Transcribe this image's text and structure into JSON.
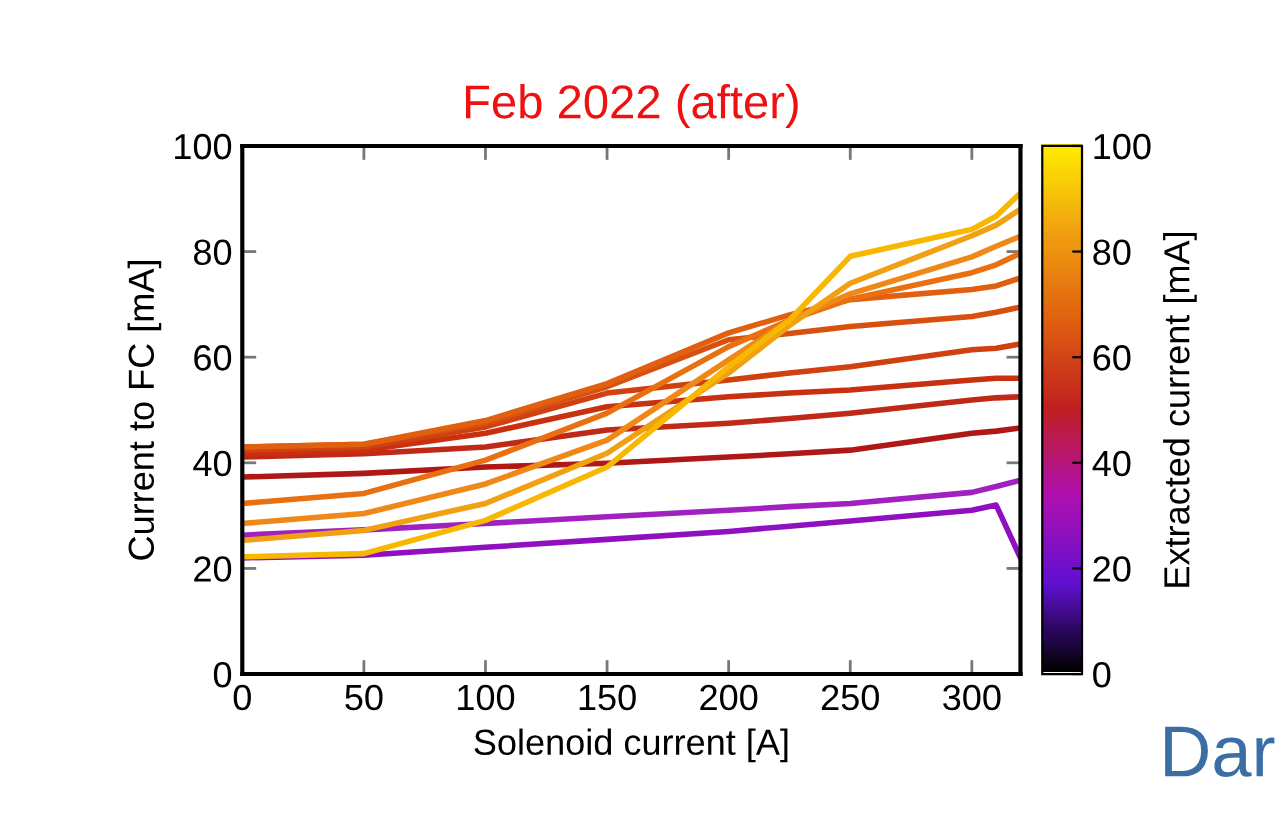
{
  "chart_data": {
    "type": "line",
    "title": "Feb 2022 (after)",
    "xlabel": "Solenoid current [A]",
    "ylabel": "Current to FC [mA]",
    "clabel": "Extracted current [mA]",
    "x": [
      0,
      50,
      100,
      150,
      200,
      225,
      250,
      300,
      310,
      320
    ],
    "series": [
      {
        "color": "#9010c0",
        "values": [
          22,
          22.5,
          24,
          25.5,
          27,
          28,
          29,
          31,
          32,
          22
        ]
      },
      {
        "color": "#a020c0",
        "values": [
          26.3,
          27.3,
          28.5,
          29.8,
          31,
          31.7,
          32.3,
          34.4,
          35.5,
          36.7
        ]
      },
      {
        "color": "#b01818",
        "values": [
          37.3,
          38,
          39.2,
          39.9,
          41.1,
          41.7,
          42.4,
          45.6,
          46,
          46.6
        ]
      },
      {
        "color": "#c02818",
        "values": [
          41.1,
          41.7,
          43,
          46.2,
          47.5,
          48.4,
          49.4,
          51.9,
          52.3,
          52.5
        ]
      },
      {
        "color": "#c83010",
        "values": [
          41.8,
          42.4,
          45.6,
          50.6,
          52.5,
          53.2,
          53.8,
          55.7,
          56,
          56
        ]
      },
      {
        "color": "#d04010",
        "values": [
          42.4,
          43,
          46.8,
          53.2,
          55.7,
          57,
          58.2,
          61.4,
          61.7,
          62.5
        ]
      },
      {
        "color": "#d85010",
        "values": [
          43,
          43.5,
          47.5,
          54.4,
          63.3,
          64.5,
          65.8,
          67.7,
          68.5,
          69.5
        ]
      },
      {
        "color": "#e06010",
        "values": [
          43,
          43.5,
          48,
          55,
          64.6,
          68,
          70.9,
          72.8,
          73.5,
          75
        ]
      },
      {
        "color": "#e87010",
        "values": [
          32.3,
          34.2,
          40.5,
          49.4,
          62,
          67,
          71,
          76,
          77.5,
          79.7
        ]
      },
      {
        "color": "#f08818",
        "values": [
          28.5,
          30.4,
          36,
          44.3,
          59.5,
          67,
          72,
          79,
          81,
          82.9
        ]
      },
      {
        "color": "#f0a010",
        "values": [
          25.3,
          27.2,
          32.3,
          41.8,
          57,
          66,
          74,
          83,
          85,
          88
        ]
      },
      {
        "color": "#f8b800",
        "values": [
          22.2,
          22.8,
          29.1,
          39.2,
          58.2,
          67,
          79.1,
          84.2,
          86.7,
          91.1
        ]
      }
    ],
    "xlim": [
      0,
      320
    ],
    "xticks": [
      0,
      50,
      100,
      150,
      200,
      250,
      300
    ],
    "ylim": [
      0,
      100
    ],
    "yticks": [
      0,
      20,
      40,
      60,
      80,
      100
    ],
    "clim": [
      0,
      100
    ],
    "cticks": [
      0,
      20,
      40,
      60,
      80,
      100
    ],
    "annotations": [
      "Dar"
    ]
  }
}
